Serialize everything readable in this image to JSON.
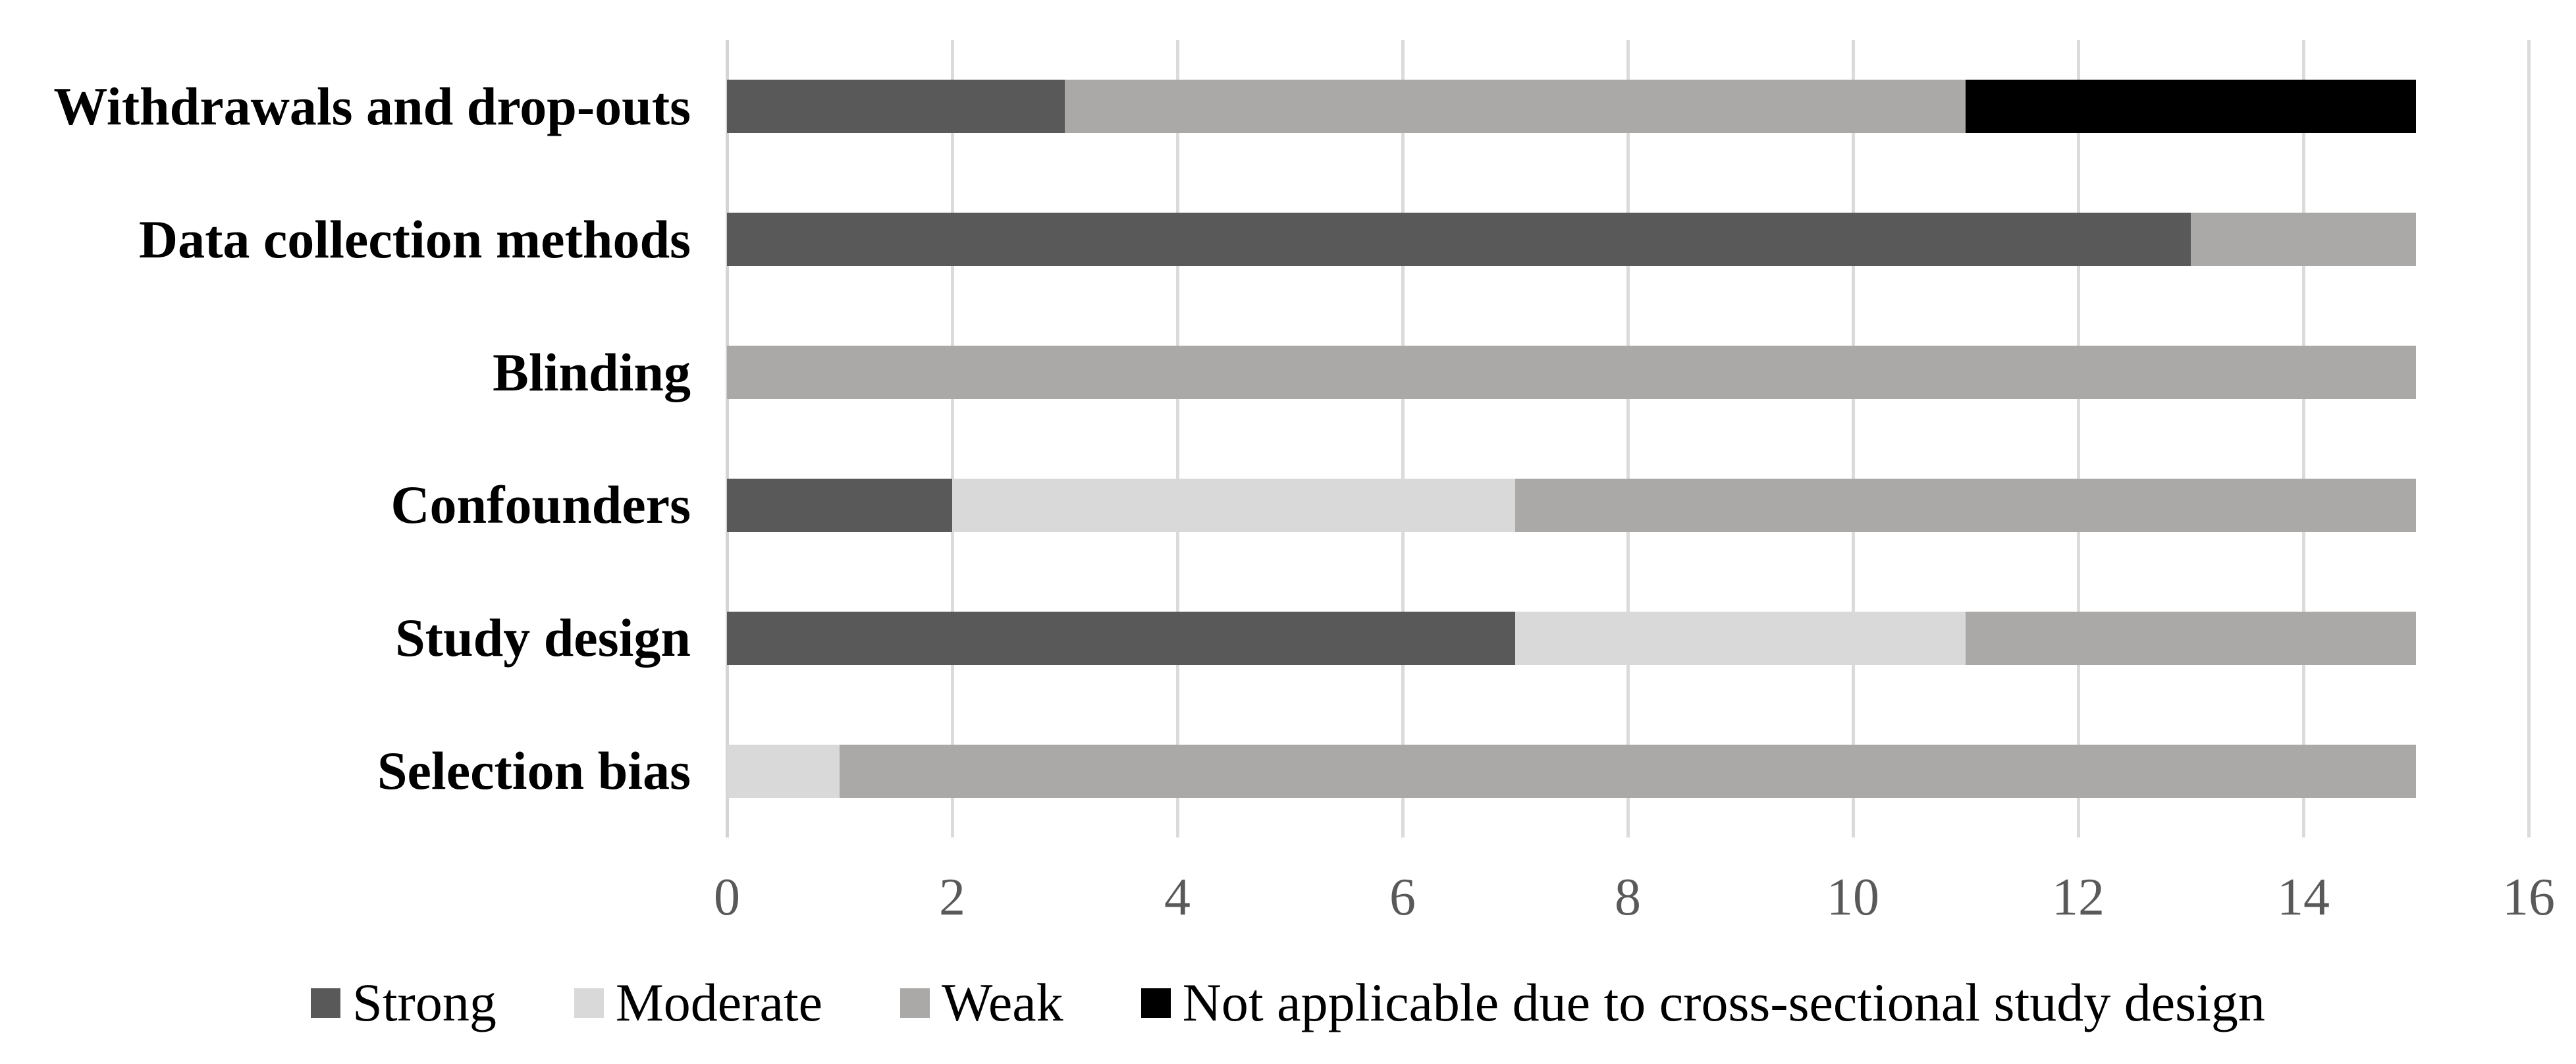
{
  "chart_data": {
    "type": "bar",
    "orientation": "horizontal",
    "stacked": true,
    "title": "",
    "xlabel": "",
    "ylabel": "",
    "xlim": [
      0,
      16
    ],
    "x_ticks": [
      0,
      2,
      4,
      6,
      8,
      10,
      12,
      14,
      16
    ],
    "grid": "vertical",
    "legend_position": "bottom",
    "categories": [
      "Withdrawals and drop-outs",
      "Data collection methods",
      "Blinding",
      "Confounders",
      "Study design",
      "Selection bias"
    ],
    "series": [
      {
        "name": "Strong",
        "color": "#595959",
        "values": [
          3,
          13,
          0,
          2,
          7,
          0
        ]
      },
      {
        "name": "Moderate",
        "color": "#D9D9D9",
        "values": [
          0,
          0,
          0,
          5,
          4,
          1
        ]
      },
      {
        "name": "Weak",
        "color": "#ABA9A7",
        "values": [
          8,
          2,
          15,
          8,
          4,
          14
        ]
      },
      {
        "name": "Not applicable due to cross-sectional study design",
        "color": "#000000",
        "values": [
          4,
          0,
          0,
          0,
          0,
          0
        ]
      }
    ]
  },
  "style_colors": {
    "gridline": "#DBDBDB",
    "axis_line": "#D4D4D4",
    "tick_text": "#595959",
    "category_text": "#000000",
    "legend_text": "#000000"
  }
}
